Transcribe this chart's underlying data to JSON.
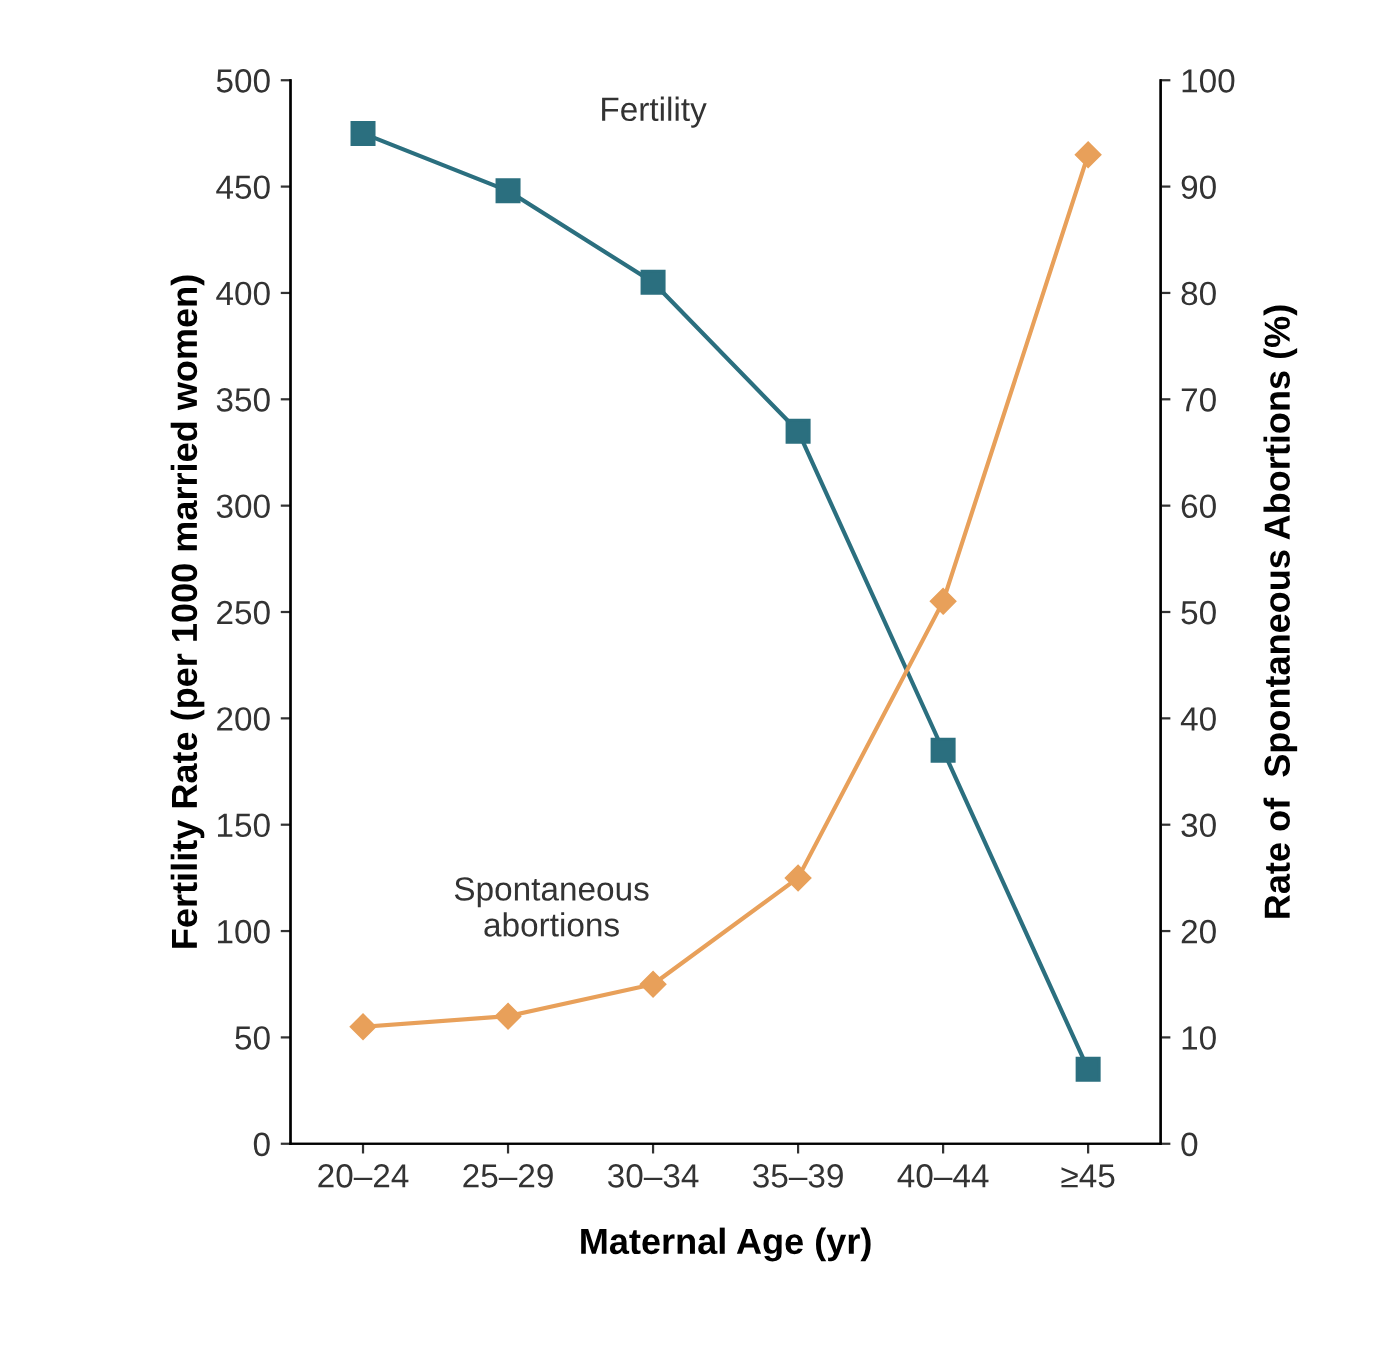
{
  "chart_data": {
    "type": "line",
    "categories": [
      "20–24",
      "25–29",
      "30–34",
      "35–39",
      "40–44",
      "≥45"
    ],
    "xlabel": "Maternal Age (yr)",
    "ylabel": "Fertility Rate (per 1000 married women)",
    "y2label": "Rate of  Spontaneous Abortions (%)",
    "series": [
      {
        "name": "Fertility",
        "color": "#2b6f7f",
        "marker": "square",
        "values": [
          475,
          448,
          405,
          335,
          185,
          35
        ]
      },
      {
        "name": "Spontaneous\nabortions",
        "color": "#e8a05a",
        "marker": "diamond",
        "axis": "y2",
        "values": [
          11,
          12,
          15,
          25,
          51,
          93
        ]
      }
    ],
    "ylim": [
      0,
      500
    ],
    "yticks": [
      0,
      50,
      100,
      150,
      200,
      250,
      300,
      350,
      400,
      450,
      500
    ],
    "y2lim": [
      0,
      100
    ],
    "y2ticks": [
      0,
      10,
      20,
      30,
      40,
      50,
      60,
      70,
      80,
      90,
      100
    ],
    "grid": false,
    "legend": false
  }
}
